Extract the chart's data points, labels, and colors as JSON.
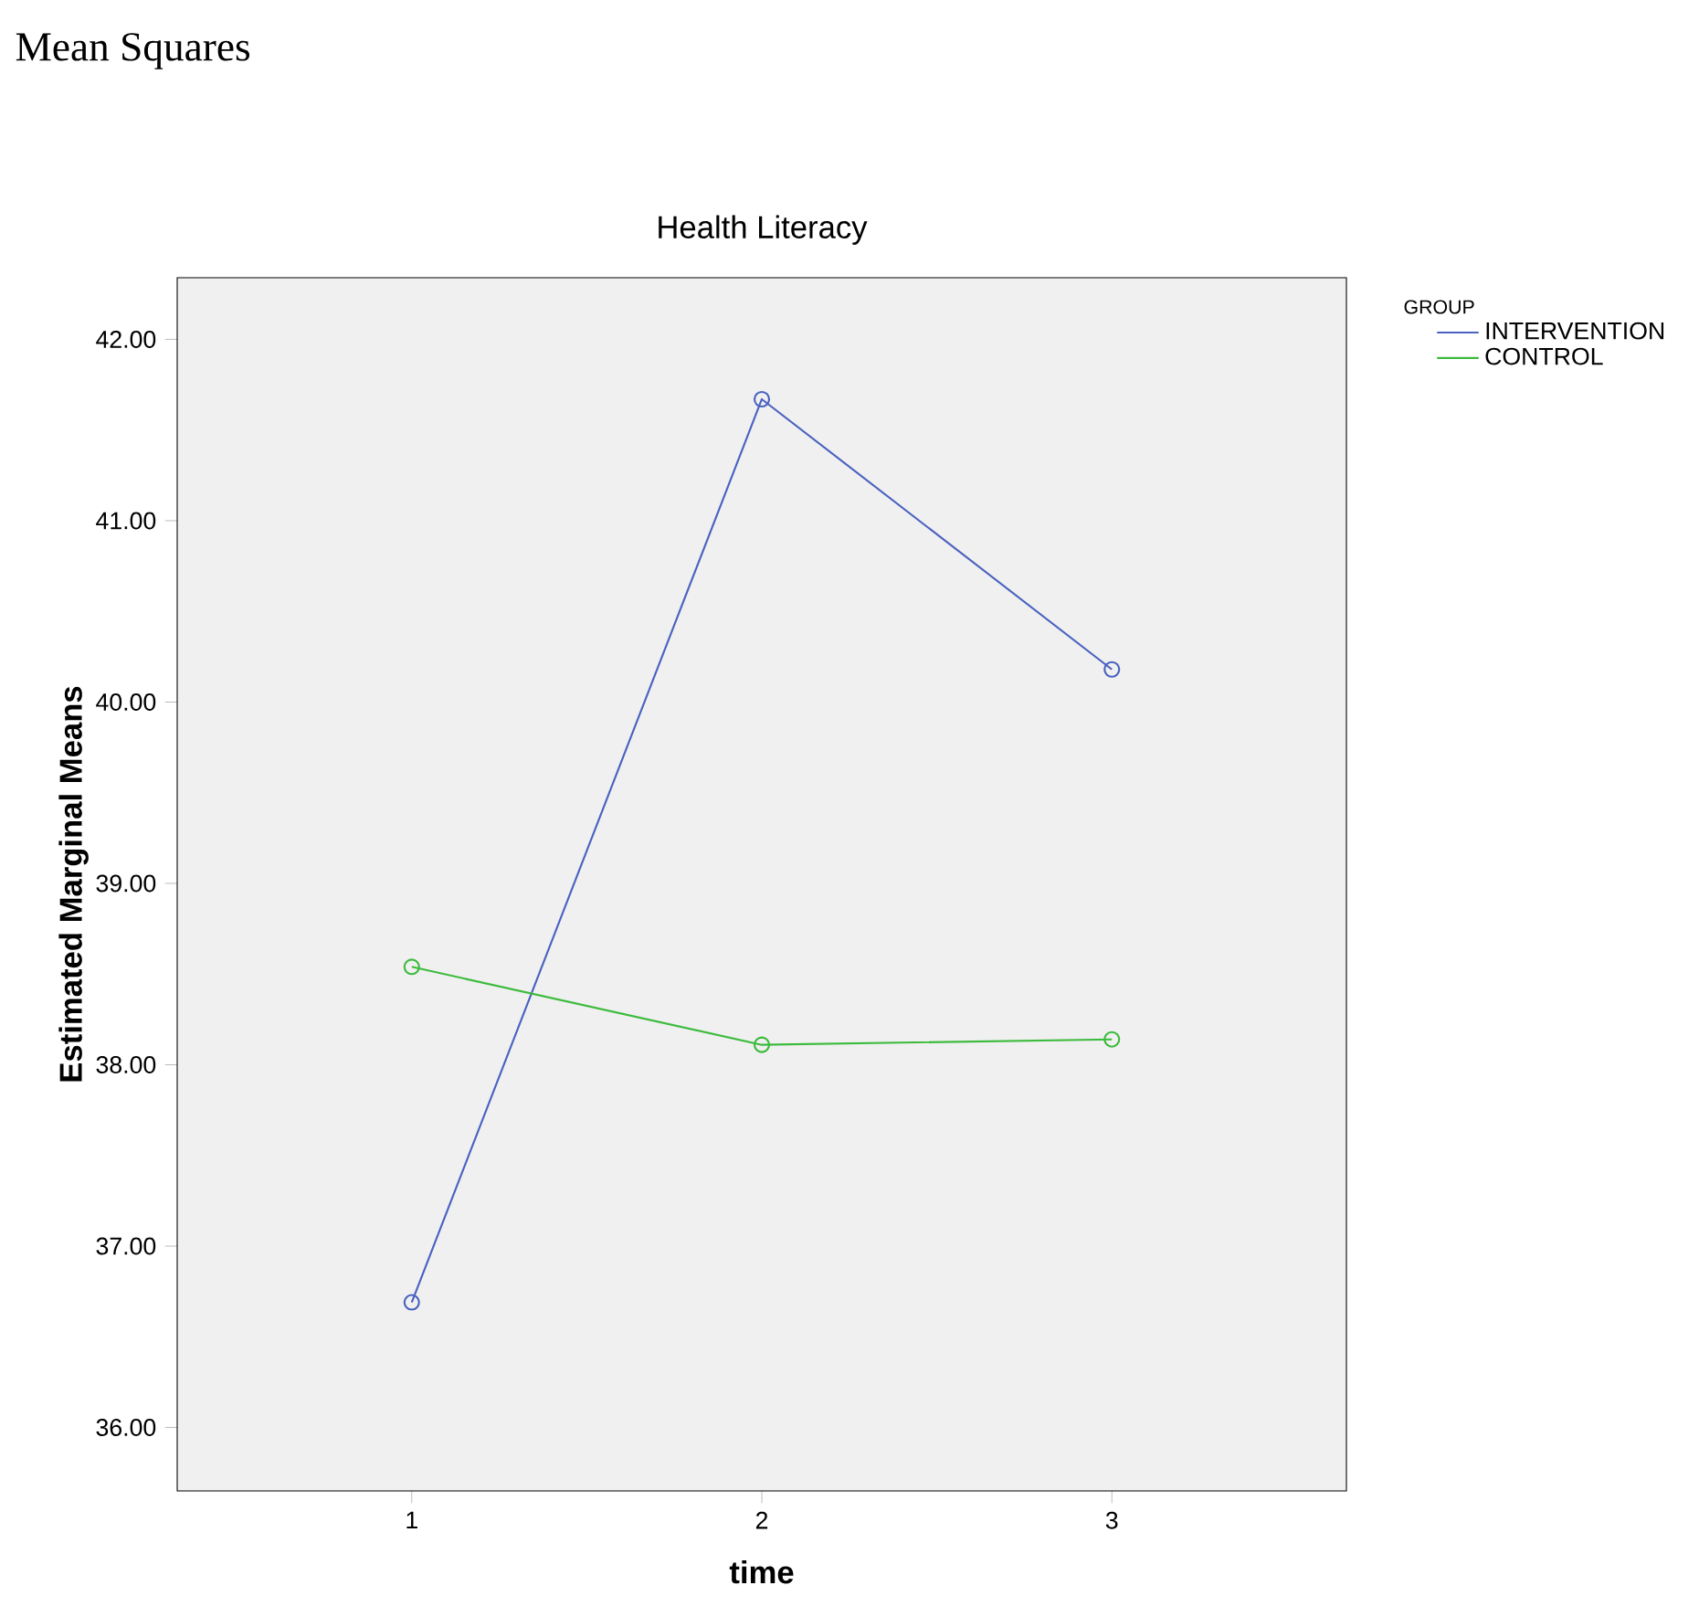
{
  "chart_data": {
    "type": "line",
    "title": "Health Literacy",
    "xlabel": "time",
    "ylabel": "Estimated Marginal Means",
    "legend_title": "GROUP",
    "annotations": [
      "Mean Squares"
    ],
    "categories": [
      "1",
      "2",
      "3"
    ],
    "series": [
      {
        "name": "INTERVENTION",
        "color": "#4a62c0",
        "values": [
          36.69,
          41.67,
          40.18
        ]
      },
      {
        "name": "CONTROL",
        "color": "#3cbb3c",
        "values": [
          38.54,
          38.11,
          38.14
        ]
      }
    ],
    "ylim": [
      35.65,
      42.34
    ],
    "yticks": [
      {
        "value": 36,
        "label": "36.00"
      },
      {
        "value": 37,
        "label": "37.00"
      },
      {
        "value": 38,
        "label": "38.00"
      },
      {
        "value": 39,
        "label": "39.00"
      },
      {
        "value": 40,
        "label": "40.00"
      },
      {
        "value": 41,
        "label": "41.00"
      },
      {
        "value": 42,
        "label": "42.00"
      }
    ],
    "legend": "right",
    "marker": "circle",
    "line_style": "solid"
  }
}
